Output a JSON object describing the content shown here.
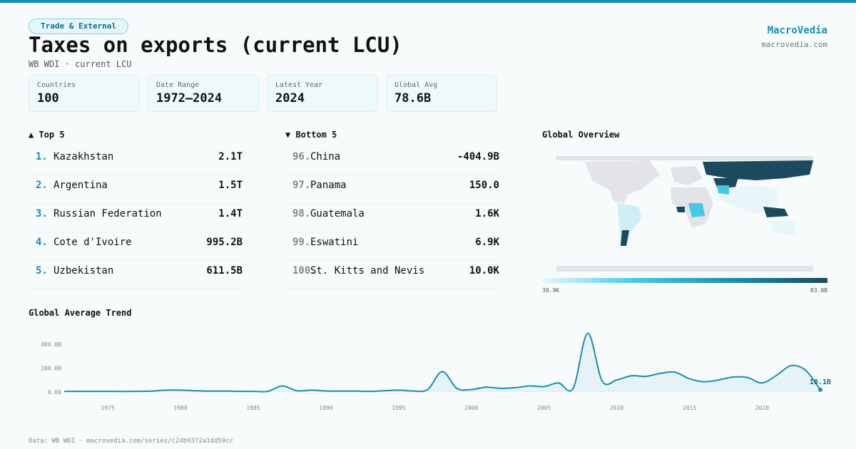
{
  "header": {
    "tag": "Trade & External",
    "title": "Taxes on exports (current LCU)",
    "subtitle": "WB WDI · current LCU",
    "brand": "MacroVedia",
    "url": "macrovedia.com"
  },
  "stats": [
    {
      "label": "Countries",
      "value": "100"
    },
    {
      "label": "Date Range",
      "value": "1972–2024"
    },
    {
      "label": "Latest Year",
      "value": "2024"
    },
    {
      "label": "Global Avg",
      "value": "78.6B"
    }
  ],
  "top": {
    "title": "▲ Top 5",
    "rows": [
      {
        "rank": "1.",
        "name": "Kazakhstan",
        "value": "2.1T"
      },
      {
        "rank": "2.",
        "name": "Argentina",
        "value": "1.5T"
      },
      {
        "rank": "3.",
        "name": "Russian Federation",
        "value": "1.4T"
      },
      {
        "rank": "4.",
        "name": "Cote d'Ivoire",
        "value": "995.2B"
      },
      {
        "rank": "5.",
        "name": "Uzbekistan",
        "value": "611.5B"
      }
    ]
  },
  "bottom": {
    "title": "▼ Bottom 5",
    "rows": [
      {
        "rank": "96.",
        "name": "China",
        "value": "-404.9B"
      },
      {
        "rank": "97.",
        "name": "Panama",
        "value": "150.0"
      },
      {
        "rank": "98.",
        "name": "Guatemala",
        "value": "1.6K"
      },
      {
        "rank": "99.",
        "name": "Eswatini",
        "value": "6.9K"
      },
      {
        "rank": "100.",
        "name": "St. Kitts and Nevis",
        "value": "10.0K"
      }
    ]
  },
  "map": {
    "title": "Global Overview",
    "legend_min": "30.9K",
    "legend_max": "83.8B"
  },
  "chart_data": {
    "type": "line",
    "title": "Global Average Trend",
    "color": "#1a8fb0",
    "x": [
      1972,
      1973,
      1974,
      1975,
      1976,
      1977,
      1978,
      1979,
      1980,
      1981,
      1982,
      1983,
      1984,
      1985,
      1986,
      1987,
      1988,
      1989,
      1990,
      1991,
      1992,
      1993,
      1994,
      1995,
      1996,
      1997,
      1998,
      1999,
      2000,
      2001,
      2002,
      2003,
      2004,
      2005,
      2006,
      2007,
      2008,
      2009,
      2010,
      2011,
      2012,
      2013,
      2014,
      2015,
      2016,
      2017,
      2018,
      2019,
      2020,
      2021,
      2022,
      2023,
      2024
    ],
    "values": [
      5,
      5,
      5,
      5,
      4,
      5,
      7,
      15,
      15,
      10,
      7,
      7,
      5,
      5,
      5,
      50,
      10,
      15,
      8,
      7,
      7,
      5,
      10,
      15,
      8,
      20,
      170,
      30,
      20,
      40,
      30,
      35,
      50,
      45,
      75,
      30,
      490,
      90,
      100,
      135,
      130,
      155,
      165,
      110,
      85,
      100,
      125,
      120,
      75,
      140,
      220,
      180,
      18.1
    ],
    "value_labels": [
      null,
      null,
      null,
      null,
      null,
      null,
      null,
      null,
      null,
      null,
      null,
      null,
      null,
      null,
      null,
      null,
      null,
      null,
      null,
      null,
      null,
      null,
      null,
      null,
      null,
      null,
      null,
      null,
      null,
      null,
      null,
      null,
      null,
      null,
      null,
      null,
      null,
      null,
      null,
      null,
      null,
      null,
      null,
      null,
      null,
      null,
      null,
      null,
      null,
      null,
      null,
      null,
      "18.1B"
    ],
    "xlim": [
      1972,
      2024
    ],
    "xticks": [
      1975,
      1980,
      1985,
      1990,
      1995,
      2000,
      2005,
      2010,
      2015,
      2020
    ],
    "ylim": [
      -60,
      500
    ],
    "yticks": [
      {
        "value": 0,
        "label": "0.00"
      },
      {
        "value": 200,
        "label": "200.0B"
      },
      {
        "value": 400,
        "label": "400.0B"
      }
    ],
    "grid": true
  },
  "footer": "Data: WB WDI · macrovedia.com/series/c24b9372a1dd59cc"
}
